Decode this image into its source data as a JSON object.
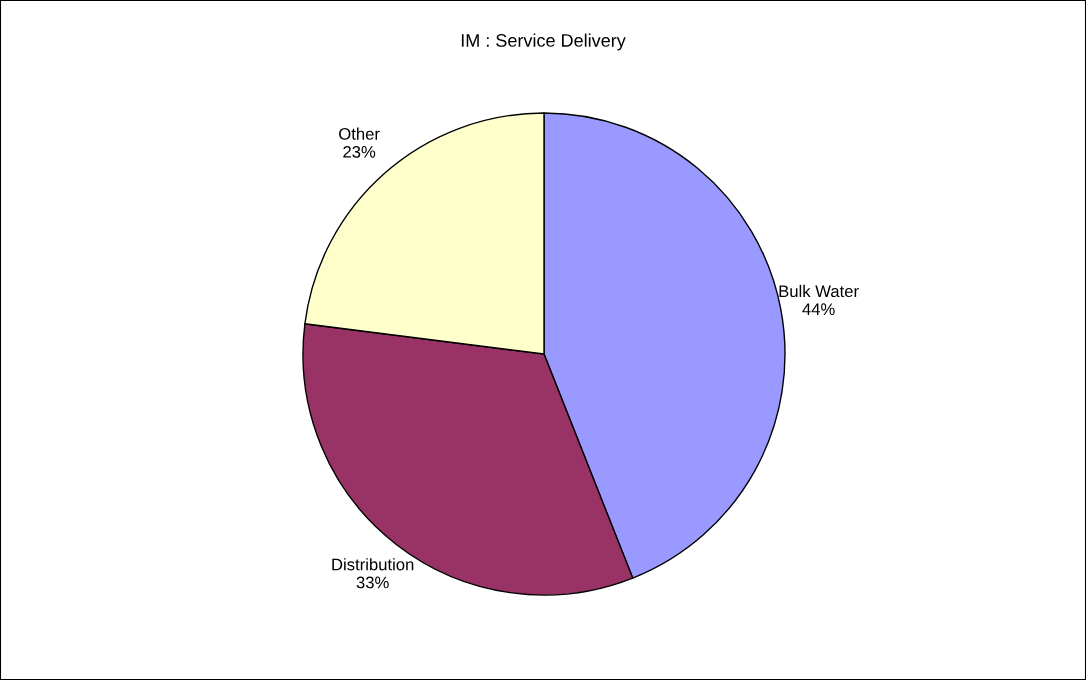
{
  "chart_data": {
    "type": "pie",
    "title": "IM : Service Delivery",
    "categories": [
      "Bulk Water",
      "Distribution",
      "Other"
    ],
    "values": [
      44,
      33,
      23
    ],
    "value_labels": [
      "44%",
      "33%",
      "23%"
    ],
    "colors": [
      "#9999ff",
      "#993366",
      "#ffffcc"
    ]
  }
}
